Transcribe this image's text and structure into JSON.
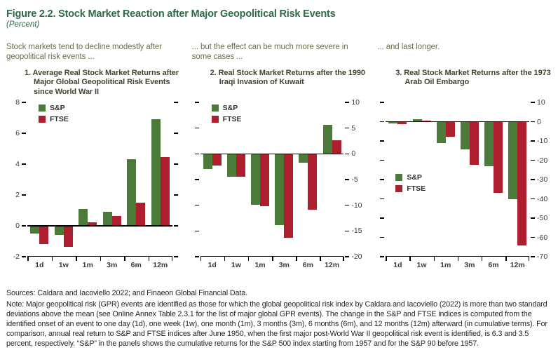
{
  "figure": {
    "title": "Figure 2.2. Stock Market Reaction after Major Geopolitical Risk Events",
    "subtitle": "(Percent)",
    "colors": {
      "title_green": "#2c6b47",
      "lead_olive": "#6c7150",
      "panel_title": "#3c4631",
      "sp_green": "#4c7a38",
      "ftse_red": "#ad1f2e",
      "axis_text": "#3d3d3d",
      "note_text": "#262626"
    }
  },
  "panels": [
    {
      "lead": "Stock markets tend to decline modestly after geopolitical risk events ...",
      "title": "1. Average Real Stock Market Returns after Major Global Geopolitical Risk Events since World War II"
    },
    {
      "lead": "... but the effect can be much more severe in some cases ...",
      "title": "2. Real Stock Market Returns after the 1990 Iraqi Invasion of Kuwait"
    },
    {
      "lead": "... and last longer.",
      "title": "3. Real Stock Market Returns after the 1973 Arab Oil Embargo"
    }
  ],
  "legend": {
    "sp_label": "S&P",
    "ftse_label": "FTSE"
  },
  "chart_data": [
    {
      "type": "bar",
      "title": "1. Average Real Stock Market Returns after Major Global Geopolitical Risk Events since World War II",
      "categories": [
        "1d",
        "1w",
        "1m",
        "3m",
        "6m",
        "12m"
      ],
      "series": [
        {
          "name": "S&P",
          "values": [
            -0.5,
            -0.6,
            1.1,
            0.9,
            4.3,
            6.9
          ]
        },
        {
          "name": "FTSE",
          "values": [
            -1.2,
            -1.35,
            0.25,
            0.65,
            1.5,
            4.45
          ]
        }
      ],
      "xlabel": "",
      "ylabel": "",
      "ylim": [
        -2,
        8
      ],
      "yticks": [
        8,
        6,
        4,
        2,
        0,
        -2
      ],
      "axis_side": "left",
      "grid": false,
      "legend_pos": {
        "x": 16,
        "y_frac": 0.01
      }
    },
    {
      "type": "bar",
      "title": "2. Real Stock Market Returns after the 1990 Iraqi Invasion of Kuwait",
      "categories": [
        "1d",
        "1w",
        "1m",
        "3m",
        "6m",
        "12m"
      ],
      "series": [
        {
          "name": "S&P",
          "values": [
            -2.9,
            -4.4,
            -9.9,
            -13.9,
            -1.7,
            5.6
          ]
        },
        {
          "name": "FTSE",
          "values": [
            -2.3,
            -4.4,
            -10.2,
            -16.3,
            -10.9,
            2.7
          ]
        }
      ],
      "xlabel": "",
      "ylabel": "",
      "ylim": [
        -20,
        10
      ],
      "yticks": [
        10,
        5,
        0,
        -5,
        -10,
        -15,
        -20
      ],
      "axis_side": "right",
      "grid": false,
      "legend_pos": {
        "x": 16,
        "y_frac": 0.01
      }
    },
    {
      "type": "bar",
      "title": "3. Real Stock Market Returns after the 1973 Arab Oil Embargo",
      "categories": [
        "1d",
        "1w",
        "1m",
        "3m",
        "6m",
        "12m"
      ],
      "series": [
        {
          "name": "S&P",
          "values": [
            -0.9,
            1.4,
            -11.0,
            -14.5,
            -23.0,
            -40.0
          ]
        },
        {
          "name": "FTSE",
          "values": [
            -1.2,
            0.5,
            -7.8,
            -22.5,
            -37.0,
            -64.0
          ]
        }
      ],
      "xlabel": "",
      "ylabel": "",
      "ylim": [
        -70,
        10
      ],
      "yticks": [
        10,
        0,
        -10,
        -20,
        -30,
        -40,
        -50,
        -60,
        -70
      ],
      "axis_side": "right",
      "grid": false,
      "legend_pos": {
        "x": 14,
        "y_frac": 0.46
      }
    }
  ],
  "footer": {
    "sources": "Sources: Caldara and Iacoviello 2022; and Finaeon Global Financial Data.",
    "note": "Note: Major geopolitical risk (GPR) events are identified as those for which the global geopolitical risk index by Caldara and Iacoviello (2022) is more than two standard deviations above the mean (see Online Annex Table 2.3.1 for the list of major global GPR events). The change in the S&P and FTSE indices is computed from the identified onset of an event to one day (1d), one week (1w), one month (1m), 3 months (3m), 6 months (6m), and 12 months (12m) afterward (in cumulative terms). For comparison, annual real return to S&P and FTSE indices after June 1950, when the first major post-World War II geopolitical risk event is identified, is 6.3 and 3.5 percent, respectively. “S&P” in the panels shows the cumulative returns for the S&P 500 index starting from 1957 and for the S&P 90 before 1957."
  }
}
